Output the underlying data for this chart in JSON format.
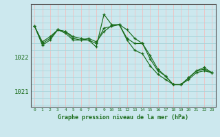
{
  "bg_color": "#cce8ee",
  "plot_bg_color": "#cce8ee",
  "grid_color_v": "#aad4da",
  "grid_color_h": "#f0c0c0",
  "line_color": "#1a6b1a",
  "xlabel": "Graphe pression niveau de la mer (hPa)",
  "xlim": [
    -0.5,
    23.5
  ],
  "ylim": [
    1020.55,
    1023.55
  ],
  "yticks": [
    1021.0,
    1022.0
  ],
  "xticks": [
    0,
    1,
    2,
    3,
    4,
    5,
    6,
    7,
    8,
    9,
    10,
    11,
    12,
    13,
    14,
    15,
    16,
    17,
    18,
    19,
    20,
    21,
    22,
    23
  ],
  "series": [
    {
      "x": [
        0,
        1,
        2,
        3,
        4,
        5,
        6,
        7,
        8,
        9,
        10,
        11,
        12,
        13,
        14,
        15,
        16,
        17,
        18,
        19,
        20,
        21,
        22,
        23
      ],
      "y": [
        1022.9,
        1022.35,
        1022.5,
        1022.8,
        1022.75,
        1022.6,
        1022.55,
        1022.5,
        1022.3,
        1023.25,
        1022.95,
        1022.95,
        1022.5,
        1022.2,
        1022.1,
        1021.75,
        1021.5,
        1021.35,
        1021.2,
        1021.2,
        1021.35,
        1021.55,
        1021.6,
        1021.55
      ]
    },
    {
      "x": [
        0,
        1,
        2,
        3,
        4,
        5,
        6,
        7,
        8,
        9,
        10,
        11,
        12,
        13,
        14,
        15,
        16,
        17,
        18,
        19,
        20,
        21,
        22,
        23
      ],
      "y": [
        1022.9,
        1022.45,
        1022.6,
        1022.8,
        1022.7,
        1022.5,
        1022.5,
        1022.55,
        1022.45,
        1022.75,
        1022.92,
        1022.95,
        1022.8,
        1022.55,
        1022.4,
        1022.05,
        1021.65,
        1021.45,
        1021.2,
        1021.2,
        1021.4,
        1021.6,
        1021.65,
        1021.55
      ]
    },
    {
      "x": [
        0,
        1,
        2,
        3,
        4,
        5,
        6,
        7,
        8,
        9,
        10,
        11,
        12,
        13,
        14,
        15,
        16,
        17,
        18,
        19,
        20,
        21,
        22,
        23
      ],
      "y": [
        1022.9,
        1022.4,
        1022.55,
        1022.8,
        1022.75,
        1022.55,
        1022.5,
        1022.5,
        1022.4,
        1022.85,
        1022.9,
        1022.95,
        1022.55,
        1022.4,
        1022.4,
        1021.95,
        1021.6,
        1021.45,
        1021.2,
        1021.2,
        1021.4,
        1021.6,
        1021.7,
        1021.55
      ]
    }
  ]
}
